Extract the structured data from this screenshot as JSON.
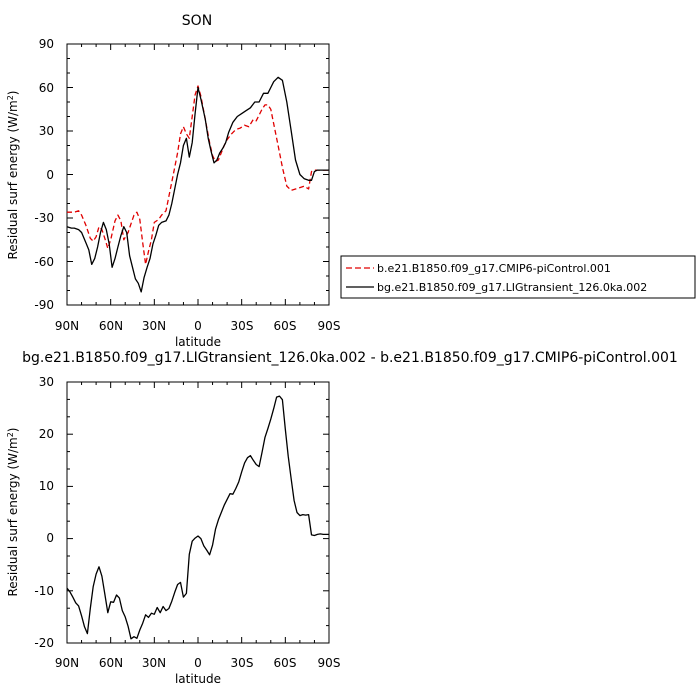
{
  "chart_data": [
    {
      "type": "line",
      "title": "SON",
      "xlabel": "latitude",
      "ylabel": "Residual surf energy (W/m²)",
      "ylabel_main": "Residual surf energy (W/m",
      "ylabel_sup": "2",
      "ylabel_tail": ")",
      "xlim": [
        90,
        -90
      ],
      "ylim": [
        -90,
        90
      ],
      "x_ticks": [
        "90N",
        "60N",
        "30N",
        "0",
        "30S",
        "60S",
        "90S"
      ],
      "y_ticks": [
        "-90",
        "-60",
        "-30",
        "0",
        "30",
        "60",
        "90"
      ],
      "legend": {
        "placement": "right-outside"
      },
      "series": [
        {
          "name": "b.e21.B1850.f09_g17.CMIP6-piControl.001",
          "color": "#e00000",
          "dash": "dashed",
          "x": [
            90,
            85,
            82,
            80,
            77,
            74,
            72,
            70,
            68,
            66,
            64,
            62,
            60,
            57,
            55,
            53,
            51,
            48,
            46,
            44,
            42,
            40,
            38,
            36,
            34,
            32,
            30,
            27,
            25,
            22,
            20,
            17,
            14,
            12,
            10,
            8,
            6,
            4,
            2,
            0,
            -2,
            -5,
            -8,
            -10,
            -12,
            -14,
            -16,
            -18,
            -20,
            -23,
            -26,
            -29,
            -32,
            -35,
            -38,
            -40,
            -42,
            -44,
            -46,
            -48,
            -50,
            -52,
            -55,
            -58,
            -61,
            -64,
            -67,
            -70,
            -73,
            -76,
            -78,
            -80,
            -82,
            -85,
            -90
          ],
          "y": [
            -26,
            -26,
            -25,
            -28,
            -35,
            -44,
            -46,
            -43,
            -36,
            -38,
            -44,
            -51,
            -45,
            -32,
            -28,
            -32,
            -45,
            -40,
            -34,
            -28,
            -26,
            -31,
            -47,
            -62,
            -53,
            -45,
            -33,
            -31,
            -28,
            -25,
            -15,
            0,
            15,
            28,
            33,
            28,
            25,
            40,
            55,
            61,
            54,
            38,
            22,
            13,
            9,
            10,
            15,
            20,
            24,
            28,
            31,
            32,
            34,
            33,
            38,
            37,
            41,
            45,
            48,
            48,
            45,
            35,
            20,
            5,
            -8,
            -11,
            -10,
            -9,
            -8,
            -10,
            2,
            3,
            3,
            3,
            3
          ]
        },
        {
          "name": "bg.e21.B1850.f09_g17.LIGtransient_126.0ka.002",
          "color": "#000000",
          "dash": "solid",
          "x": [
            90,
            87,
            85,
            82,
            80,
            77,
            75,
            73,
            71,
            69,
            67,
            65,
            63,
            61,
            59,
            57,
            55,
            53,
            51,
            49,
            47,
            45,
            43,
            41,
            39,
            37,
            35,
            33,
            31,
            29,
            27,
            25,
            22,
            20,
            18,
            16,
            14,
            12,
            10,
            8,
            6,
            4,
            2,
            0,
            -2,
            -5,
            -7,
            -9,
            -11,
            -13,
            -15,
            -17,
            -19,
            -21,
            -24,
            -27,
            -30,
            -33,
            -36,
            -39,
            -42,
            -45,
            -48,
            -50,
            -52,
            -55,
            -58,
            -61,
            -64,
            -67,
            -70,
            -73,
            -76,
            -78,
            -80,
            -82,
            -85,
            -90
          ],
          "y": [
            -36,
            -37,
            -37,
            -38,
            -40,
            -47,
            -52,
            -62,
            -58,
            -50,
            -40,
            -33,
            -38,
            -48,
            -64,
            -58,
            -50,
            -42,
            -36,
            -40,
            -56,
            -64,
            -72,
            -75,
            -81,
            -71,
            -64,
            -58,
            -48,
            -42,
            -35,
            -33,
            -32,
            -28,
            -20,
            -10,
            0,
            8,
            20,
            25,
            12,
            22,
            42,
            60,
            52,
            38,
            25,
            16,
            8,
            10,
            15,
            18,
            22,
            29,
            36,
            40,
            42,
            44,
            46,
            50,
            50,
            56,
            56,
            60,
            64,
            67,
            65,
            50,
            30,
            10,
            0,
            -3,
            -4,
            -4,
            2,
            3,
            3,
            3
          ]
        }
      ]
    },
    {
      "type": "line",
      "title": "bg.e21.B1850.f09_g17.LIGtransient_126.0ka.002 - b.e21.B1850.f09_g17.CMIP6-piControl.001",
      "xlabel": "latitude",
      "ylabel": "Residual surf energy (W/m²)",
      "ylabel_main": "Residual surf energy (W/m",
      "ylabel_sup": "2",
      "ylabel_tail": ")",
      "xlim": [
        90,
        -90
      ],
      "ylim": [
        -20,
        30
      ],
      "x_ticks": [
        "90N",
        "60N",
        "30N",
        "0",
        "30S",
        "60S",
        "90S"
      ],
      "y_ticks": [
        "-20",
        "-10",
        "0",
        "10",
        "20",
        "30"
      ],
      "series": [
        {
          "color": "#000000",
          "dash": "solid",
          "x": [
            90,
            88,
            86,
            84,
            82,
            80,
            78,
            76,
            74,
            72,
            70,
            68,
            66,
            64,
            62,
            60,
            58,
            56,
            54,
            52,
            50,
            48,
            46,
            44,
            42,
            40,
            38,
            36,
            34,
            32,
            30,
            28,
            26,
            24,
            22,
            20,
            18,
            16,
            14,
            12,
            10,
            8,
            6,
            4,
            2,
            0,
            -2,
            -4,
            -6,
            -8,
            -10,
            -12,
            -14,
            -16,
            -18,
            -20,
            -22,
            -24,
            -26,
            -28,
            -30,
            -32,
            -34,
            -36,
            -38,
            -40,
            -42,
            -44,
            -46,
            -48,
            -50,
            -52,
            -54,
            -56,
            -58,
            -60,
            -62,
            -64,
            -66,
            -68,
            -70,
            -72,
            -74,
            -76,
            -78,
            -80,
            -82,
            -84,
            -86,
            -88,
            -90
          ],
          "y": [
            -9.5,
            -10.2,
            -11.2,
            -12.3,
            -12.9,
            -14.8,
            -16.9,
            -18.2,
            -13.4,
            -9.2,
            -6.8,
            -5.4,
            -7.2,
            -10.6,
            -14.2,
            -12.1,
            -12.2,
            -10.8,
            -11.4,
            -13.8,
            -15.0,
            -16.8,
            -19.2,
            -18.8,
            -19.1,
            -17.5,
            -16.2,
            -14.6,
            -15.1,
            -14.3,
            -14.5,
            -13.2,
            -14.2,
            -13.0,
            -13.8,
            -13.4,
            -12.0,
            -10.3,
            -8.8,
            -8.4,
            -11.2,
            -10.5,
            -3.0,
            -0.5,
            0.1,
            0.5,
            0.0,
            -1.4,
            -2.2,
            -3.1,
            -1.2,
            1.8,
            3.6,
            5.0,
            6.4,
            7.5,
            8.6,
            8.5,
            9.6,
            10.9,
            12.8,
            14.5,
            15.5,
            15.9,
            15.0,
            14.2,
            13.8,
            16.5,
            19.4,
            21.1,
            22.9,
            24.9,
            27.1,
            27.3,
            26.6,
            21.0,
            15.8,
            11.4,
            7.3,
            5.0,
            4.4,
            4.6,
            4.5,
            4.6,
            0.7,
            0.6,
            0.8,
            0.9,
            0.8,
            0.8,
            0.8
          ]
        }
      ]
    }
  ]
}
